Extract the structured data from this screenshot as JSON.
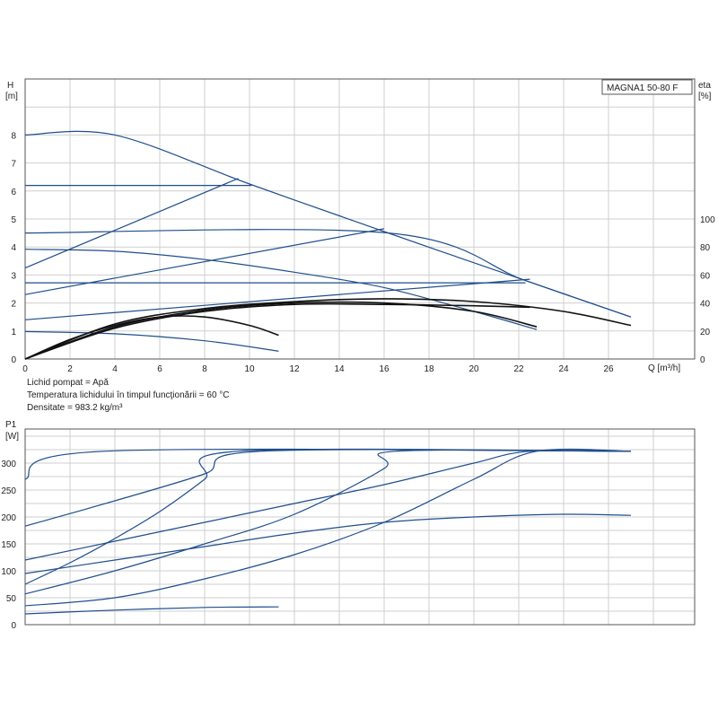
{
  "model_label": "MAGNA1 50-80 F",
  "conditions": [
    "Lichid pompat = Apă",
    "Temperatura lichidului în timpul funcţionării = 60 °C",
    "Densitate = 983.2 kg/m³"
  ],
  "colors": {
    "curve": "#1f4e8c",
    "efficiency": "#111111",
    "grid": "#cfcfcf",
    "frame": "#555555"
  },
  "chart_data": [
    {
      "type": "line",
      "title": "",
      "xlabel": "Q [m³/h]",
      "ylabel_top": "H",
      "ylabel_bottom": "[m]",
      "y2label_top": "eta",
      "y2label_bottom": "[%]",
      "xlim": [
        0,
        30
      ],
      "ylim": [
        0,
        9
      ],
      "y2lim": [
        0,
        130
      ],
      "xticks": [
        0,
        2,
        4,
        6,
        8,
        10,
        12,
        14,
        16,
        18,
        20,
        22,
        24,
        26
      ],
      "yticks": [
        0,
        1,
        2,
        3,
        4,
        5,
        6,
        7,
        8
      ],
      "y2ticks": [
        0,
        20,
        40,
        60,
        80,
        100
      ],
      "grid": true,
      "series": [
        {
          "kind": "head",
          "x": [
            0,
            4,
            10,
            16,
            22.3,
            27
          ],
          "y": [
            8,
            8,
            6.25,
            4.55,
            2.8,
            1.5
          ]
        },
        {
          "kind": "head",
          "x": [
            0,
            16.2,
            22.3,
            27
          ],
          "y": [
            4.5,
            4.5,
            2.8,
            1.5
          ]
        },
        {
          "kind": "head",
          "x": [
            0,
            10.1
          ],
          "y": [
            6.2,
            6.2
          ]
        },
        {
          "kind": "head",
          "x": [
            0,
            22.3
          ],
          "y": [
            2.72,
            2.72
          ]
        },
        {
          "kind": "head",
          "x": [
            0,
            9.5
          ],
          "y": [
            3.25,
            6.45
          ]
        },
        {
          "kind": "head",
          "x": [
            0,
            16.0
          ],
          "y": [
            2.3,
            4.65
          ]
        },
        {
          "kind": "head",
          "x": [
            0,
            22.5
          ],
          "y": [
            1.4,
            2.85
          ]
        },
        {
          "kind": "head",
          "x": [
            0,
            4,
            8,
            12,
            16,
            20,
            22.8
          ],
          "y": [
            3.92,
            3.85,
            3.55,
            3.1,
            2.55,
            1.7,
            1.05
          ]
        },
        {
          "kind": "head",
          "x": [
            0,
            4,
            8,
            11.3
          ],
          "y": [
            0.98,
            0.9,
            0.65,
            0.28
          ]
        },
        {
          "kind": "efficiency",
          "x": [
            0,
            4,
            8,
            12,
            16,
            20,
            24,
            27
          ],
          "y": [
            0,
            25,
            36,
            41,
            43,
            41,
            34,
            24
          ]
        },
        {
          "kind": "efficiency",
          "x": [
            0,
            4,
            8,
            12,
            16,
            20,
            22.8
          ],
          "y": [
            0,
            23,
            35,
            40,
            40,
            34,
            23
          ]
        },
        {
          "kind": "efficiency",
          "x": [
            0,
            4,
            8,
            12,
            16,
            20,
            22.5
          ],
          "y": [
            0,
            22,
            34,
            39,
            39,
            38,
            37
          ]
        },
        {
          "kind": "efficiency",
          "x": [
            0,
            2,
            4,
            6,
            8,
            10,
            11.3
          ],
          "y": [
            0,
            14,
            24,
            30,
            30,
            24,
            17
          ]
        }
      ]
    },
    {
      "type": "line",
      "title": "",
      "xlabel": "",
      "ylabel_top": "P1",
      "ylabel_bottom": "[W]",
      "xlim": [
        0,
        30
      ],
      "ylim": [
        0,
        340
      ],
      "yticks": [
        0,
        50,
        100,
        150,
        200,
        250,
        300
      ],
      "grid": true,
      "series": [
        {
          "kind": "power",
          "x": [
            0,
            3.5,
            27
          ],
          "y": [
            270,
            322,
            322
          ]
        },
        {
          "kind": "power",
          "x": [
            0,
            4,
            8,
            10.5,
            27
          ],
          "y": [
            183,
            230,
            280,
            322,
            322
          ]
        },
        {
          "kind": "power",
          "x": [
            0,
            4,
            8,
            12,
            16,
            20,
            22.5,
            27
          ],
          "y": [
            120,
            155,
            190,
            225,
            260,
            300,
            322,
            322
          ]
        },
        {
          "kind": "power",
          "x": [
            0,
            4,
            8,
            12,
            16,
            20,
            24,
            27
          ],
          "y": [
            95,
            120,
            145,
            170,
            190,
            200,
            205,
            203
          ]
        },
        {
          "kind": "power",
          "x": [
            0,
            2,
            4,
            6,
            8,
            9.5,
            27
          ],
          "y": [
            75,
            115,
            160,
            210,
            270,
            322,
            322
          ]
        },
        {
          "kind": "power",
          "x": [
            0,
            4,
            8,
            12,
            16,
            16.5,
            27
          ],
          "y": [
            57,
            100,
            150,
            205,
            290,
            322,
            322
          ]
        },
        {
          "kind": "power",
          "x": [
            0,
            4,
            8,
            12,
            16,
            20,
            22.8,
            27
          ],
          "y": [
            35,
            50,
            85,
            130,
            190,
            270,
            322,
            322
          ]
        },
        {
          "kind": "power",
          "x": [
            0,
            4,
            8,
            11.3
          ],
          "y": [
            20,
            27,
            32,
            33
          ]
        }
      ]
    }
  ]
}
